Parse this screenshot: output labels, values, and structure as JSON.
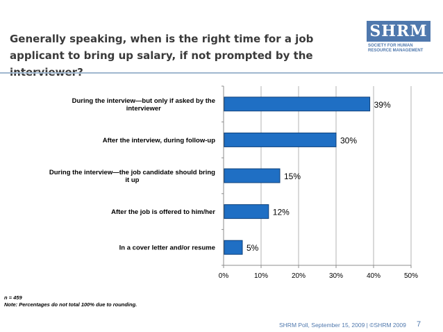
{
  "slide": {
    "title": "Generally speaking, when is the right time for a job applicant to bring up salary, if not prompted by the interviewer?",
    "note_n": "n = 459",
    "note_rounding": "Note: Percentages do not total 100% due to rounding.",
    "footer": "SHRM Poll, September 15, 2009 | ©SHRM 2009",
    "page_number": "7"
  },
  "logo": {
    "mark": "SHRM",
    "line1": "Society for Human",
    "line2": "Resource Management"
  },
  "colors": {
    "bar": "#1f6fc4",
    "bar_edge": "#0d3f7a",
    "accent": "#4f78ad",
    "grid": "#b3b3b3"
  },
  "chart_data": {
    "type": "bar",
    "orientation": "horizontal",
    "categories": [
      "During the interview—but only if asked by the interviewer",
      "After the interview, during follow-up",
      "During the interview—the job candidate should bring it up",
      "After the job is offered to him/her",
      "In a cover letter and/or resume"
    ],
    "category_lines": [
      [
        "During the interview—but only if asked by the",
        "interviewer"
      ],
      [
        "After the interview, during follow-up"
      ],
      [
        "During the interview—the job candidate should bring",
        "it up"
      ],
      [
        "After the job is offered to him/her"
      ],
      [
        "In a cover letter and/or resume"
      ]
    ],
    "values": [
      39,
      30,
      15,
      12,
      5
    ],
    "data_labels": [
      "39%",
      "30%",
      "15%",
      "12%",
      "5%"
    ],
    "xlim": [
      0,
      50
    ],
    "xticks": [
      0,
      10,
      20,
      30,
      40,
      50
    ],
    "xtick_labels": [
      "0%",
      "10%",
      "20%",
      "30%",
      "40%",
      "50%"
    ],
    "grid": true,
    "legend": "none"
  }
}
